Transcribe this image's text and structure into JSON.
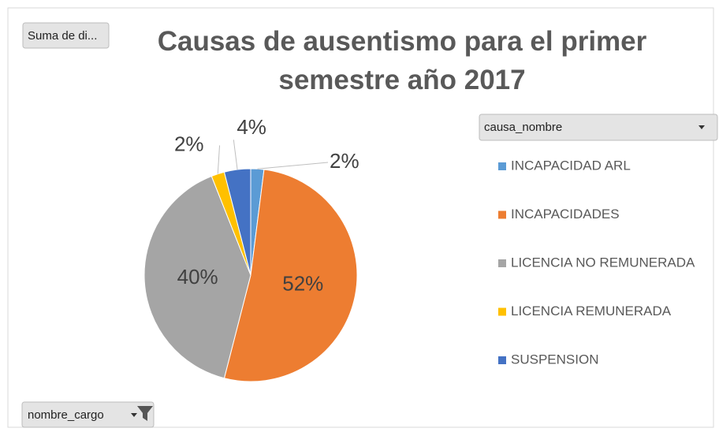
{
  "chart_data": {
    "type": "pie",
    "title": "Causas de ausentismo para el primer semestre año 2017",
    "categories": [
      "INCAPACIDAD ARL",
      "INCAPACIDADES",
      "LICENCIA NO REMUNERADA",
      "LICENCIA REMUNERADA",
      "SUSPENSION"
    ],
    "values": [
      2,
      52,
      40,
      2,
      4
    ],
    "value_labels": [
      "2%",
      "52%",
      "40%",
      "2%",
      "4%"
    ],
    "colors": [
      "#5b9bd5",
      "#ed7d31",
      "#a5a5a5",
      "#ffc000",
      "#4472c4"
    ],
    "legend": "right"
  },
  "value_button": "Suma de di...",
  "legend_field": "causa_nombre",
  "axis_field": "nombre_cargo"
}
